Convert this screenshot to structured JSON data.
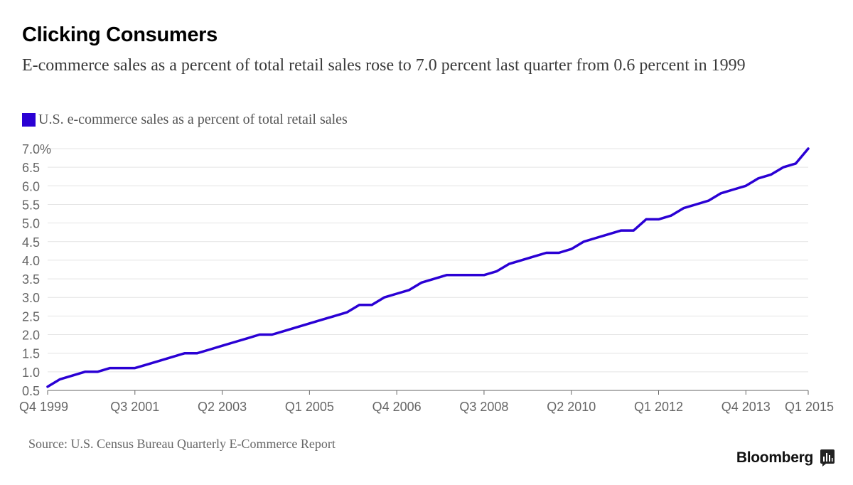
{
  "header": {
    "title": "Clicking Consumers",
    "subtitle": "E-commerce sales as a percent of total retail sales rose to 7.0 percent last quarter from 0.6 percent in 1999"
  },
  "footer": {
    "source": "Source: U.S. Census Bureau Quarterly E-Commerce Report",
    "brand": "Bloomberg"
  },
  "colors": {
    "series": "#2a00d4",
    "grid": "#e4e4e4",
    "axis_text": "#666666"
  },
  "chart_data": {
    "type": "line",
    "title": "Clicking Consumers",
    "subtitle": "E-commerce sales as a percent of total retail sales rose to 7.0 percent last quarter from 0.6 percent in 1999",
    "xlabel": "",
    "ylabel": "",
    "ylim": [
      0.5,
      7.0
    ],
    "grid": true,
    "legend_position": "top-left",
    "yticks": [
      "7.0%",
      "6.5",
      "6.0",
      "5.5",
      "5.0",
      "4.5",
      "4.0",
      "3.5",
      "3.0",
      "2.5",
      "2.0",
      "1.5",
      "1.0",
      "0.5"
    ],
    "xticks": [
      "Q4 1999",
      "Q3 2001",
      "Q2 2003",
      "Q1 2005",
      "Q4 2006",
      "Q3 2008",
      "Q2 2010",
      "Q1 2012",
      "Q4 2013",
      "Q1 2015"
    ],
    "categories": [
      "Q4 1999",
      "Q1 2000",
      "Q2 2000",
      "Q3 2000",
      "Q4 2000",
      "Q1 2001",
      "Q2 2001",
      "Q3 2001",
      "Q4 2001",
      "Q1 2002",
      "Q2 2002",
      "Q3 2002",
      "Q4 2002",
      "Q1 2003",
      "Q2 2003",
      "Q3 2003",
      "Q4 2003",
      "Q1 2004",
      "Q2 2004",
      "Q3 2004",
      "Q4 2004",
      "Q1 2005",
      "Q2 2005",
      "Q3 2005",
      "Q4 2005",
      "Q1 2006",
      "Q2 2006",
      "Q3 2006",
      "Q4 2006",
      "Q1 2007",
      "Q2 2007",
      "Q3 2007",
      "Q4 2007",
      "Q1 2008",
      "Q2 2008",
      "Q3 2008",
      "Q4 2008",
      "Q1 2009",
      "Q2 2009",
      "Q3 2009",
      "Q4 2009",
      "Q1 2010",
      "Q2 2010",
      "Q3 2010",
      "Q4 2010",
      "Q1 2011",
      "Q2 2011",
      "Q3 2011",
      "Q4 2011",
      "Q1 2012",
      "Q2 2012",
      "Q3 2012",
      "Q4 2012",
      "Q1 2013",
      "Q2 2013",
      "Q3 2013",
      "Q4 2013",
      "Q1 2014",
      "Q2 2014",
      "Q3 2014",
      "Q4 2014",
      "Q1 2015"
    ],
    "series": [
      {
        "name": "U.S. e-commerce sales as a percent of total retail sales",
        "values": [
          0.6,
          0.8,
          0.9,
          1.0,
          1.0,
          1.1,
          1.1,
          1.1,
          1.2,
          1.3,
          1.4,
          1.5,
          1.5,
          1.6,
          1.7,
          1.8,
          1.9,
          2.0,
          2.0,
          2.1,
          2.2,
          2.3,
          2.4,
          2.5,
          2.6,
          2.8,
          2.8,
          3.0,
          3.1,
          3.2,
          3.4,
          3.5,
          3.6,
          3.6,
          3.6,
          3.6,
          3.7,
          3.9,
          4.0,
          4.1,
          4.2,
          4.2,
          4.3,
          4.5,
          4.6,
          4.7,
          4.8,
          4.8,
          5.1,
          5.1,
          5.2,
          5.4,
          5.5,
          5.6,
          5.8,
          5.9,
          6.0,
          6.2,
          6.3,
          6.5,
          6.6,
          7.0
        ]
      }
    ]
  }
}
